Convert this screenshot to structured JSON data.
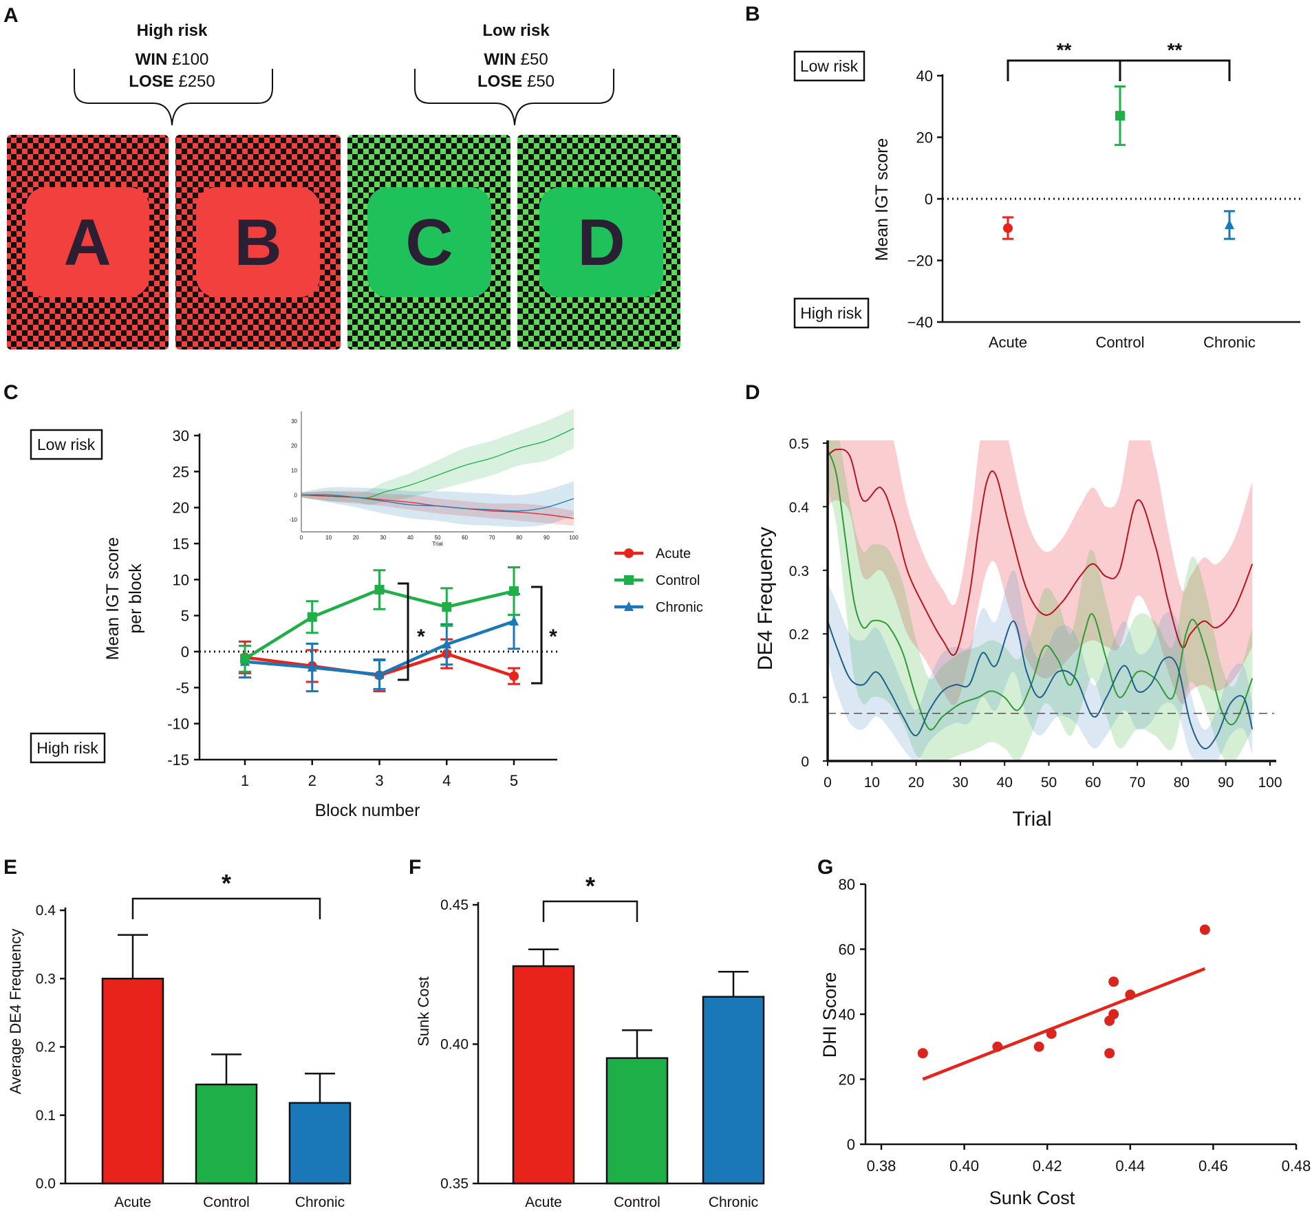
{
  "colors": {
    "acute": "#e8231c",
    "control": "#1faf48",
    "chronic": "#1a78b8",
    "deck_red": "#f2403e",
    "deck_green": "#1fc25a",
    "deck_letter": "#2a1f33"
  },
  "panels": {
    "A": {
      "label": "A",
      "high_risk": {
        "title": "High risk",
        "win_label": "WIN",
        "win_value": "£100",
        "lose_label": "LOSE",
        "lose_value": "£250"
      },
      "low_risk": {
        "title": "Low risk",
        "win_label": "WIN",
        "win_value": "£50",
        "lose_label": "LOSE",
        "lose_value": "£50"
      },
      "decks": [
        "A",
        "B",
        "C",
        "D"
      ]
    },
    "B": {
      "label": "B",
      "low_risk_label": "Low risk",
      "high_risk_label": "High risk"
    },
    "C": {
      "label": "C",
      "low_risk_label": "Low risk",
      "high_risk_label": "High risk"
    },
    "D": {
      "label": "D"
    },
    "E": {
      "label": "E"
    },
    "F": {
      "label": "F"
    },
    "G": {
      "label": "G"
    }
  },
  "chart_data": [
    {
      "id": "B",
      "type": "scatter",
      "title": "",
      "xlabel": "",
      "ylabel": "Mean IGT score",
      "categories": [
        "Acute",
        "Control",
        "Chronic"
      ],
      "ylim": [
        -40,
        40
      ],
      "yticks": [
        "40",
        "20",
        "0",
        "−20",
        "−40"
      ],
      "series": [
        {
          "name": "Acute",
          "value": -9.5,
          "err": 3.5,
          "marker": "circle"
        },
        {
          "name": "Control",
          "value": 27,
          "err": 9.5,
          "marker": "square"
        },
        {
          "name": "Chronic",
          "value": -8.5,
          "err": 4.5,
          "marker": "triangle"
        }
      ],
      "reference_line": 0,
      "significance": [
        {
          "from": "Acute",
          "to": "Control",
          "label": "**"
        },
        {
          "from": "Control",
          "to": "Chronic",
          "label": "**"
        }
      ]
    },
    {
      "id": "C",
      "type": "line",
      "title": "",
      "xlabel": "Block number",
      "ylabel": "Mean IGT score per block",
      "x": [
        1,
        2,
        3,
        4,
        5
      ],
      "xticks": [
        "1",
        "2",
        "3",
        "4",
        "5"
      ],
      "ylim": [
        -15,
        30
      ],
      "yticks": [
        "30",
        "25",
        "20",
        "15",
        "10",
        "5",
        "0",
        "-5",
        "-10",
        "-15"
      ],
      "legend": [
        "Acute",
        "Control",
        "Chronic"
      ],
      "series": [
        {
          "name": "Acute",
          "values": [
            -0.8,
            -2,
            -3.3,
            -0.3,
            -3.4
          ],
          "err": [
            2.2,
            2.2,
            2.2,
            2,
            1.1
          ]
        },
        {
          "name": "Control",
          "values": [
            -1,
            4.8,
            8.6,
            6.2,
            8.4
          ],
          "err": [
            1.8,
            2.2,
            2.7,
            2.6,
            3.3
          ]
        },
        {
          "name": "Chronic",
          "values": [
            -1.4,
            -2.2,
            -3.2,
            1,
            4.2
          ],
          "err": [
            2.2,
            3.3,
            2,
            2.8,
            3.8
          ]
        }
      ],
      "reference_line": 0,
      "significance": [
        {
          "block": 3,
          "label": "*"
        },
        {
          "block": 5,
          "label": "*"
        }
      ],
      "inset": {
        "type": "area",
        "xlabel": "Trial",
        "xticks": [
          "0",
          "10",
          "20",
          "30",
          "40",
          "50",
          "60",
          "70",
          "80",
          "90",
          "100"
        ],
        "yticks": [
          "30",
          "20",
          "10",
          "0",
          "-10"
        ],
        "xlim": [
          0,
          100
        ],
        "ylim": [
          -15,
          35
        ],
        "series": [
          {
            "name": "Control",
            "x": [
              0,
              10,
              20,
              25,
              30,
              40,
              50,
              60,
              70,
              80,
              90,
              100
            ],
            "values": [
              0,
              -0.5,
              -1,
              -1,
              1,
              4,
              8,
              12,
              15,
              19,
              22,
              27
            ],
            "band": [
              1,
              2,
              2,
              3,
              4,
              5,
              6,
              7,
              7,
              7,
              8,
              8
            ]
          },
          {
            "name": "Acute",
            "x": [
              0,
              10,
              20,
              30,
              40,
              50,
              60,
              70,
              80,
              90,
              100
            ],
            "values": [
              0,
              -0.5,
              -1,
              -2,
              -3,
              -4.5,
              -5.5,
              -6.5,
              -7,
              -8,
              -9.5
            ],
            "band": [
              1,
              2,
              2.5,
              2.5,
              3,
              3,
              3,
              3,
              3.5,
              3.5,
              3
            ]
          },
          {
            "name": "Chronic",
            "x": [
              0,
              10,
              20,
              30,
              40,
              50,
              60,
              70,
              80,
              90,
              100
            ],
            "values": [
              0,
              0,
              -1,
              -2.5,
              -4,
              -4.5,
              -5.5,
              -6,
              -6.5,
              -5,
              -1.5
            ],
            "band": [
              1,
              3,
              4,
              5,
              5.5,
              6,
              6.5,
              6.5,
              6.5,
              7,
              7
            ]
          }
        ]
      }
    },
    {
      "id": "D",
      "type": "area",
      "title": "",
      "xlabel": "Trial",
      "ylabel": "DE4 Frequency",
      "xlim": [
        0,
        100
      ],
      "ylim": [
        0,
        0.5
      ],
      "xticks": [
        "0",
        "10",
        "20",
        "30",
        "40",
        "50",
        "60",
        "70",
        "80",
        "90",
        "100"
      ],
      "yticks": [
        "0.5",
        "0.4",
        "0.3",
        "0.2",
        "0.1",
        "0"
      ],
      "reference_line": 0.075,
      "series": [
        {
          "name": "Acute",
          "x": [
            0,
            2,
            5,
            8,
            12,
            15,
            18,
            22,
            26,
            29,
            32,
            34,
            36,
            38,
            41,
            45,
            49,
            53,
            57,
            60,
            63,
            66,
            70,
            74,
            77,
            80,
            82,
            85,
            88,
            92,
            96
          ],
          "values": [
            0.48,
            0.49,
            0.48,
            0.41,
            0.43,
            0.38,
            0.3,
            0.24,
            0.19,
            0.17,
            0.26,
            0.36,
            0.44,
            0.45,
            0.37,
            0.27,
            0.23,
            0.25,
            0.29,
            0.31,
            0.29,
            0.3,
            0.41,
            0.34,
            0.25,
            0.18,
            0.2,
            0.22,
            0.21,
            0.24,
            0.31
          ],
          "band": [
            0.08,
            0.08,
            0.09,
            0.12,
            0.13,
            0.12,
            0.1,
            0.08,
            0.08,
            0.08,
            0.1,
            0.12,
            0.14,
            0.14,
            0.13,
            0.11,
            0.1,
            0.1,
            0.11,
            0.12,
            0.11,
            0.12,
            0.15,
            0.13,
            0.11,
            0.09,
            0.09,
            0.1,
            0.1,
            0.11,
            0.13
          ]
        },
        {
          "name": "Control",
          "x": [
            0,
            2,
            4,
            6,
            8,
            10,
            12,
            14,
            17,
            20,
            23,
            26,
            30,
            34,
            37,
            40,
            43,
            46,
            49,
            52,
            55,
            58,
            60,
            63,
            66,
            70,
            74,
            78,
            81,
            83,
            86,
            89,
            92,
            96
          ],
          "values": [
            0.49,
            0.45,
            0.35,
            0.25,
            0.21,
            0.22,
            0.22,
            0.21,
            0.17,
            0.1,
            0.05,
            0.07,
            0.09,
            0.1,
            0.11,
            0.1,
            0.08,
            0.12,
            0.18,
            0.16,
            0.12,
            0.2,
            0.23,
            0.16,
            0.1,
            0.14,
            0.13,
            0.1,
            0.2,
            0.22,
            0.16,
            0.08,
            0.06,
            0.13
          ],
          "band": [
            0.06,
            0.08,
            0.1,
            0.12,
            0.12,
            0.12,
            0.12,
            0.12,
            0.11,
            0.09,
            0.08,
            0.08,
            0.08,
            0.08,
            0.08,
            0.08,
            0.08,
            0.08,
            0.09,
            0.09,
            0.08,
            0.1,
            0.1,
            0.09,
            0.08,
            0.09,
            0.09,
            0.08,
            0.09,
            0.1,
            0.09,
            0.07,
            0.06,
            0.08
          ]
        },
        {
          "name": "Chronic",
          "x": [
            0,
            2,
            5,
            8,
            11,
            14,
            17,
            20,
            23,
            26,
            29,
            32,
            35,
            38,
            42,
            45,
            48,
            52,
            56,
            60,
            63,
            67,
            70,
            73,
            76,
            79,
            82,
            85,
            88,
            91,
            94,
            96
          ],
          "values": [
            0.22,
            0.18,
            0.13,
            0.12,
            0.14,
            0.11,
            0.07,
            0.04,
            0.08,
            0.11,
            0.12,
            0.12,
            0.17,
            0.15,
            0.22,
            0.14,
            0.1,
            0.14,
            0.13,
            0.07,
            0.1,
            0.15,
            0.11,
            0.12,
            0.16,
            0.15,
            0.06,
            0.02,
            0.04,
            0.09,
            0.1,
            0.05
          ],
          "band": [
            0.06,
            0.07,
            0.07,
            0.07,
            0.07,
            0.06,
            0.05,
            0.04,
            0.05,
            0.06,
            0.06,
            0.06,
            0.07,
            0.07,
            0.08,
            0.07,
            0.06,
            0.07,
            0.07,
            0.05,
            0.06,
            0.07,
            0.06,
            0.06,
            0.07,
            0.07,
            0.05,
            0.03,
            0.04,
            0.05,
            0.05,
            0.04
          ]
        }
      ]
    },
    {
      "id": "E",
      "type": "bar",
      "title": "",
      "xlabel": "",
      "ylabel": "Average DE4 Frequency",
      "categories": [
        "Acute",
        "Control",
        "Chronic"
      ],
      "values": [
        0.3,
        0.145,
        0.118
      ],
      "err": [
        0.064,
        0.044,
        0.043
      ],
      "ylim": [
        0,
        0.4
      ],
      "yticks": [
        "0.4",
        "0.3",
        "0.2",
        "0.1",
        "0.0"
      ],
      "significance": [
        {
          "from": "Acute",
          "to": "Chronic",
          "label": "*"
        }
      ]
    },
    {
      "id": "F",
      "type": "bar",
      "title": "",
      "xlabel": "",
      "ylabel": "Sunk Cost",
      "categories": [
        "Acute",
        "Control",
        "Chronic"
      ],
      "values": [
        0.428,
        0.395,
        0.417
      ],
      "err": [
        0.006,
        0.01,
        0.009
      ],
      "ylim": [
        0.35,
        0.45
      ],
      "yticks": [
        "0.45",
        "0.40",
        "0.35"
      ],
      "significance": [
        {
          "from": "Acute",
          "to": "Control",
          "label": "*"
        }
      ]
    },
    {
      "id": "G",
      "type": "scatter",
      "title": "",
      "xlabel": "Sunk Cost",
      "ylabel": "DHI Score",
      "xlim": [
        0.38,
        0.48
      ],
      "ylim": [
        0,
        80
      ],
      "xticks": [
        "0.38",
        "0.40",
        "0.42",
        "0.44",
        "0.46",
        "0.48"
      ],
      "yticks": [
        "80",
        "60",
        "40",
        "20",
        "0"
      ],
      "points": [
        [
          0.39,
          28
        ],
        [
          0.408,
          30
        ],
        [
          0.418,
          30
        ],
        [
          0.421,
          34
        ],
        [
          0.435,
          38
        ],
        [
          0.435,
          28
        ],
        [
          0.436,
          50
        ],
        [
          0.436,
          40
        ],
        [
          0.44,
          46
        ],
        [
          0.458,
          66
        ]
      ],
      "fit_line": [
        [
          0.39,
          20
        ],
        [
          0.458,
          54
        ]
      ]
    }
  ]
}
